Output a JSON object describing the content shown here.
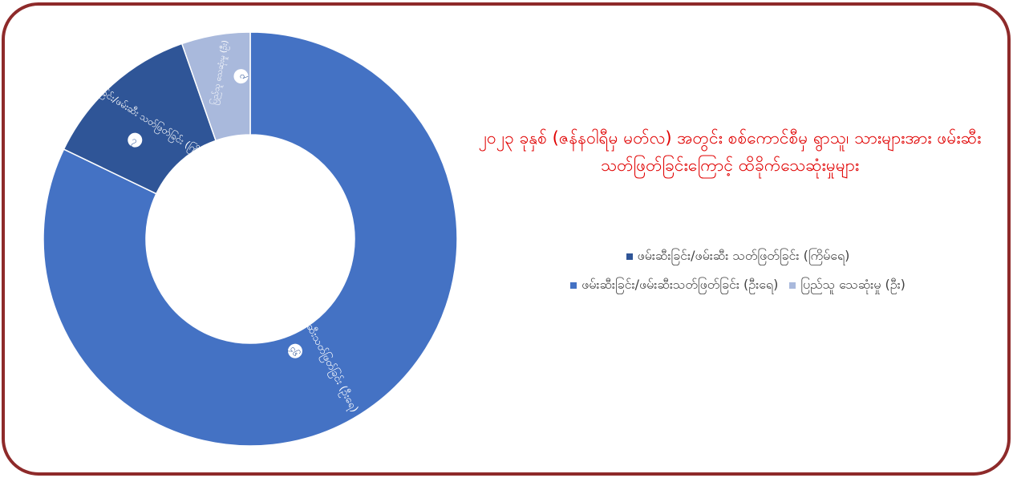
{
  "chart_data": {
    "type": "pie",
    "title": "၂၀၂၃ ခုနှစ် (ဇန်နဝါရီမှ မတ်လ) အတွင်း စစ်ကောင်စီမှ ရွာသူ၊ သားများအား ဖမ်းဆီးသတ်ဖြတ်ခြင်းကြောင့် ထိခိုက်သေဆုံးမှုများ",
    "categories": [
      "ဖမ်းဆီးခြင်း/ဖမ်းဆီးသတ်ဖြတ်ခြင်း (ဦးရေ)",
      "ဖမ်းဆီးခြင်း/ဖမ်းဆီး သတ်ဖြတ်ခြင်း (ကြိမ်ရေ)",
      "ပြည်သူ သေဆုံးမှု (ဦး)"
    ],
    "slice_labels": [
      "ဖမ်းဆီးခြင်း/ ဖမ်းဆီးသတ်ဖြတ်ခြင်း (ဦးရေ)",
      "ဖမ်းဆီးခြင်း/ဖမ်းဆီး သတ်ဖြတ်ခြင်း (ကြိမ်ရေ)",
      "ပြည်သူ သေဆုံးမှု (ဦး)"
    ],
    "value_labels": [
      "၄၆",
      "၇",
      "၃"
    ],
    "values": [
      46,
      7,
      3
    ],
    "colors": [
      "#4472c4",
      "#2f5597",
      "#a9b9dc"
    ],
    "legend_position": "right"
  },
  "legend": {
    "row1": [
      {
        "label": "ဖမ်းဆီးခြင်း/ဖမ်းဆီး သတ်ဖြတ်ခြင်း (ကြိမ်ရေ)",
        "color": "#2f5597"
      }
    ],
    "row2": [
      {
        "label": "ဖမ်းဆီးခြင်း/ဖမ်းဆီးသတ်ဖြတ်ခြင်း (ဦးရေ)",
        "color": "#4472c4"
      },
      {
        "label": "ပြည်သူ သေဆုံးမှု (ဦး)",
        "color": "#a9b9dc"
      }
    ]
  },
  "colors": {
    "frame": "#8e2a2a",
    "title": "#e00000"
  }
}
